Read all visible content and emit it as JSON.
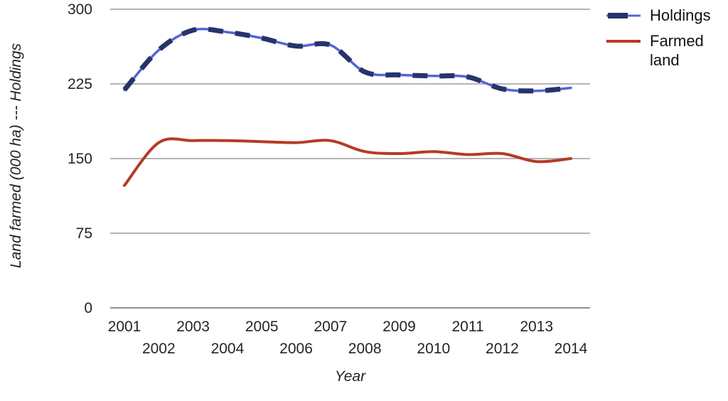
{
  "chart_data": {
    "type": "line",
    "title": "",
    "xlabel": "Year",
    "ylabel": "Land farmed (000 ha) --- Holdings",
    "x": [
      2001,
      2002,
      2003,
      2004,
      2005,
      2006,
      2007,
      2008,
      2009,
      2010,
      2011,
      2012,
      2013,
      2014
    ],
    "series": [
      {
        "name": "Holdings",
        "style": "dashed",
        "color": "#27336b",
        "underlay_color": "#5565d4",
        "values": [
          219,
          259,
          279,
          277,
          271,
          263,
          264,
          237,
          234,
          233,
          232,
          220,
          218,
          221
        ]
      },
      {
        "name": "Farmed land",
        "style": "solid",
        "color": "#b53b25",
        "values": [
          123,
          166,
          168,
          168,
          167,
          166,
          168,
          157,
          155,
          157,
          154,
          155,
          147,
          150
        ]
      }
    ],
    "y_ticks": [
      0,
      75,
      150,
      225,
      300
    ],
    "ylim": [
      0,
      300
    ],
    "grid": true,
    "legend_position": "top-right",
    "colors": {
      "grid": "#b5b5b5",
      "axis": "#8f8f8f",
      "tick_text": "#242424"
    }
  }
}
